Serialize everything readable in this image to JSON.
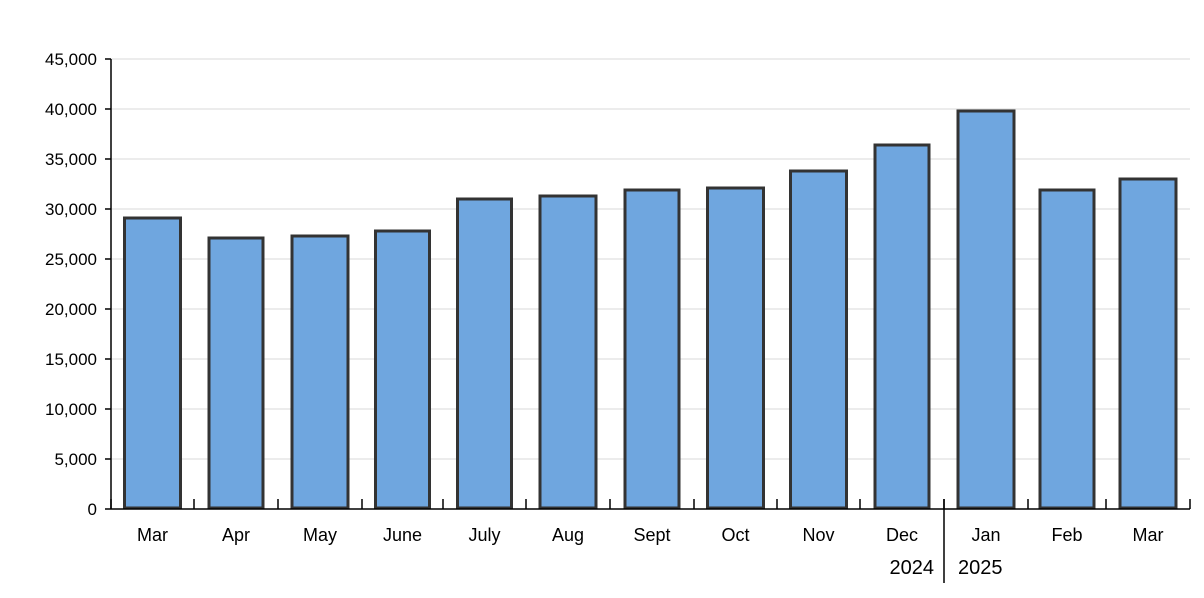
{
  "chart_data": {
    "type": "bar",
    "categories": [
      "Mar",
      "Apr",
      "May",
      "June",
      "July",
      "Aug",
      "Sept",
      "Oct",
      "Nov",
      "Dec",
      "Jan",
      "Feb",
      "Mar"
    ],
    "values": [
      29100,
      27100,
      27300,
      27800,
      31000,
      31300,
      31900,
      32100,
      33800,
      36400,
      39800,
      31900,
      33000
    ],
    "year_groups": [
      {
        "label": "2024",
        "start_index": 0,
        "end_index": 9
      },
      {
        "label": "2025",
        "start_index": 10,
        "end_index": 12
      }
    ],
    "y_ticks": [
      "0",
      "5,000",
      "10,000",
      "15,000",
      "20,000",
      "25,000",
      "30,000",
      "35,000",
      "40,000",
      "45,000"
    ],
    "ylim": [
      0,
      45000
    ],
    "grid": true,
    "bar_color": "#6fa6df",
    "bar_border_color": "#333333"
  }
}
